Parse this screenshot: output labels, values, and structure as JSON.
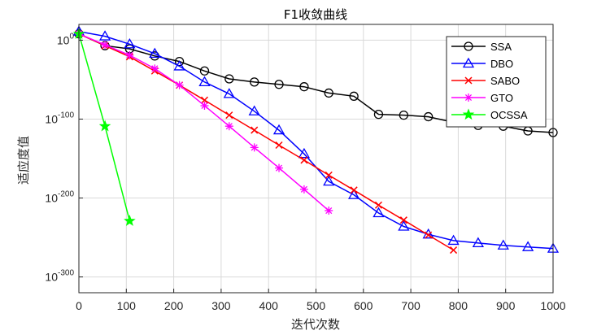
{
  "chart_data": {
    "type": "line",
    "title": "F1收敛曲线",
    "xlabel": "迭代次数",
    "ylabel": "适应度值",
    "xlim": [
      0,
      1000
    ],
    "ylim": [
      -320,
      20
    ],
    "yscale": "log",
    "xticks": [
      "0",
      "100",
      "200",
      "300",
      "400",
      "500",
      "600",
      "700",
      "800",
      "900",
      "1000"
    ],
    "yticks": [
      {
        "base": "10",
        "exp": "0",
        "value": 0
      },
      {
        "base": "10",
        "exp": "-100",
        "value": -100
      },
      {
        "base": "10",
        "exp": "-200",
        "value": -200
      },
      {
        "base": "10",
        "exp": "-300",
        "value": -300
      }
    ],
    "grid": true,
    "legend_position": "top-right",
    "series": [
      {
        "name": "SSA",
        "color": "#000000",
        "marker": "circle",
        "x": [
          0,
          55,
          107,
          160,
          212,
          265,
          317,
          370,
          422,
          475,
          527,
          580,
          632,
          685,
          737,
          790,
          842,
          895,
          947,
          1000
        ],
        "y": [
          8,
          -7,
          -11,
          -20,
          -27,
          -39,
          -49,
          -53,
          -56,
          -59,
          -67,
          -71,
          -94,
          -95,
          -97,
          -104,
          -108,
          -109,
          -115,
          -117
        ]
      },
      {
        "name": "DBO",
        "color": "#0000ff",
        "marker": "triangle",
        "x": [
          0,
          55,
          107,
          160,
          212,
          265,
          317,
          370,
          422,
          475,
          527,
          580,
          632,
          685,
          737,
          790,
          842,
          895,
          947,
          1000
        ],
        "y": [
          11,
          5,
          -5,
          -17,
          -33,
          -53,
          -68,
          -90,
          -114,
          -144,
          -179,
          -196,
          -219,
          -236,
          -246,
          -254,
          -257,
          -260,
          -262,
          -264
        ]
      },
      {
        "name": "SABO",
        "color": "#ff0000",
        "marker": "x",
        "x": [
          0,
          55,
          107,
          160,
          212,
          265,
          317,
          370,
          422,
          475,
          527,
          580,
          632,
          685,
          737,
          790
        ],
        "y": [
          8,
          -7,
          -21,
          -39,
          -57,
          -76,
          -95,
          -114,
          -133,
          -152,
          -171,
          -190,
          -209,
          -228,
          -247,
          -266
        ]
      },
      {
        "name": "GTO",
        "color": "#ff00ff",
        "marker": "star",
        "x": [
          0,
          55,
          107,
          160,
          212,
          265,
          317,
          370,
          422,
          475,
          527
        ],
        "y": [
          8,
          -6,
          -19,
          -36,
          -57,
          -83,
          -109,
          -136,
          -162,
          -189,
          -216
        ]
      },
      {
        "name": "OCSSA",
        "color": "#00ff00",
        "marker": "pentagram",
        "x": [
          0,
          55,
          107
        ],
        "y": [
          8,
          -109,
          -229
        ]
      }
    ]
  }
}
